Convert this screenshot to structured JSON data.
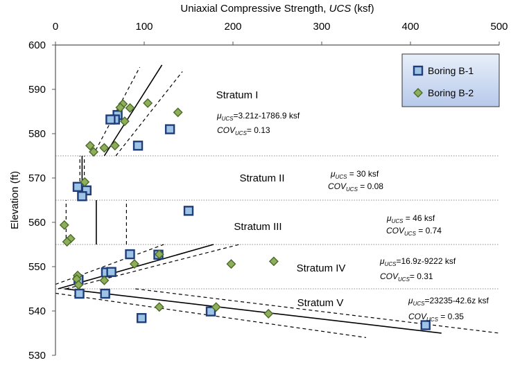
{
  "chart_data": {
    "type": "scatter",
    "title": "",
    "xlabel": "Uniaxial Compressive Strength, UCS (ksf)",
    "xlabel_parts": {
      "prefix": "Uniaxial Compressive Strength, ",
      "italic": "UCS",
      "suffix": " (ksf)"
    },
    "ylabel": "Elevation (ft)",
    "x_axis_position": "top",
    "xlim": [
      0,
      500
    ],
    "ylim": [
      530,
      600
    ],
    "xticks": [
      "0",
      "100",
      "200",
      "300",
      "400",
      "500"
    ],
    "yticks": [
      "530",
      "540",
      "550",
      "560",
      "570",
      "580",
      "590",
      "600"
    ],
    "grid": false,
    "legend_position": "top-right",
    "series": [
      {
        "name": "Boring B-1",
        "marker": "square",
        "color": "#1f3d78",
        "fill": "#9dc3e6",
        "points": [
          [
            70,
            584.2
          ],
          [
            67,
            583.2
          ],
          [
            62,
            583.2
          ],
          [
            129,
            581.0
          ],
          [
            93,
            577.3
          ],
          [
            25,
            568.0
          ],
          [
            35,
            567.2
          ],
          [
            30,
            565.9
          ],
          [
            150,
            562.6
          ],
          [
            84,
            552.8
          ],
          [
            116,
            552.7
          ],
          [
            57,
            548.7
          ],
          [
            63,
            548.8
          ],
          [
            26,
            547.0
          ],
          [
            27,
            543.9
          ],
          [
            56,
            543.9
          ],
          [
            97,
            538.4
          ],
          [
            175,
            539.9
          ],
          [
            417,
            536.8
          ]
        ]
      },
      {
        "name": "Boring B-2",
        "marker": "diamond",
        "color": "#4a6a2a",
        "fill": "#8fae5a",
        "points": [
          [
            76,
            586.7
          ],
          [
            73,
            585.9
          ],
          [
            104,
            586.9
          ],
          [
            84,
            585.8
          ],
          [
            138,
            584.8
          ],
          [
            78,
            582.8
          ],
          [
            39,
            577.3
          ],
          [
            55,
            576.8
          ],
          [
            67,
            577.3
          ],
          [
            43,
            575.9
          ],
          [
            33,
            569.1
          ],
          [
            10,
            559.4
          ],
          [
            17,
            556.3
          ],
          [
            13,
            555.6
          ],
          [
            117,
            552.8
          ],
          [
            89,
            550.6
          ],
          [
            198,
            550.6
          ],
          [
            246,
            551.2
          ],
          [
            25,
            548.0
          ],
          [
            24,
            547.2
          ],
          [
            55,
            546.9
          ],
          [
            26,
            545.9
          ],
          [
            117,
            540.9
          ],
          [
            181,
            540.9
          ],
          [
            240,
            539.4
          ]
        ]
      }
    ],
    "strata": [
      {
        "label": "Stratum I",
        "ymin": 575,
        "ymax": 600,
        "eq_mu_prefix": "μ",
        "eq_mu_sub": "UCS",
        "eq_mu_value": "=3.21z-1786.9 ksf",
        "eq_cov_prefix": "COV",
        "eq_cov_sub": "UCS",
        "eq_cov_value": "= 0.13"
      },
      {
        "label": "Stratum II",
        "ymin": 565,
        "ymax": 575,
        "eq_mu_prefix": "μ",
        "eq_mu_sub": "UCS",
        "eq_mu_value": " = 30 ksf",
        "eq_cov_prefix": "COV",
        "eq_cov_sub": "UCS",
        "eq_cov_value": " = 0.08"
      },
      {
        "label": "Stratum III",
        "ymin": 555,
        "ymax": 565,
        "eq_mu_prefix": "μ",
        "eq_mu_sub": "UCS",
        "eq_mu_value": " = 46 ksf",
        "eq_cov_prefix": "COV",
        "eq_cov_sub": "UCS",
        "eq_cov_value": " = 0.74"
      },
      {
        "label": "Stratum IV",
        "ymin": 545,
        "ymax": 555,
        "eq_mu_prefix": "μ",
        "eq_mu_sub": "UCS",
        "eq_mu_value": "=16.9z-9222 ksf",
        "eq_cov_prefix": "COV",
        "eq_cov_sub": "UCS",
        "eq_cov_value": "= 0.31"
      },
      {
        "label": "Stratum V",
        "ymin": 530,
        "ymax": 545,
        "eq_mu_prefix": "μ",
        "eq_mu_sub": "UCS",
        "eq_mu_value": "=23235-42.6z ksf",
        "eq_cov_prefix": "COV",
        "eq_cov_sub": "UCS",
        "eq_cov_value": " = 0.35"
      }
    ],
    "boundaries": [
      575,
      565,
      555,
      545
    ],
    "fit_lines": [
      {
        "stratum": "Stratum I",
        "style": "solid",
        "from": [
          55,
          575
        ],
        "to": [
          120,
          595.5
        ]
      },
      {
        "stratum": "Stratum I",
        "style": "dashed",
        "from": [
          42,
          575
        ],
        "to": [
          95,
          595
        ]
      },
      {
        "stratum": "Stratum I",
        "style": "dashed",
        "from": [
          68,
          575
        ],
        "to": [
          143,
          594
        ]
      },
      {
        "stratum": "Stratum II",
        "style": "solid",
        "from": [
          30,
          565
        ],
        "to": [
          30,
          575
        ]
      },
      {
        "stratum": "Stratum II",
        "style": "dashed",
        "from": [
          27.5,
          565
        ],
        "to": [
          27.5,
          575
        ]
      },
      {
        "stratum": "Stratum II",
        "style": "dashed",
        "from": [
          32.5,
          565
        ],
        "to": [
          32.5,
          575
        ]
      },
      {
        "stratum": "Stratum III",
        "style": "solid",
        "from": [
          46,
          555
        ],
        "to": [
          46,
          565
        ]
      },
      {
        "stratum": "Stratum III",
        "style": "dashed",
        "from": [
          12,
          555
        ],
        "to": [
          12,
          565
        ]
      },
      {
        "stratum": "Stratum III",
        "style": "dashed",
        "from": [
          80,
          555
        ],
        "to": [
          80,
          565
        ]
      },
      {
        "stratum": "Stratum IV",
        "style": "solid",
        "from": [
          3,
          545
        ],
        "to": [
          178,
          555
        ]
      },
      {
        "stratum": "Stratum IV",
        "style": "dashed",
        "from": [
          0,
          546
        ],
        "to": [
          122,
          555
        ]
      },
      {
        "stratum": "Stratum IV",
        "style": "dashed",
        "from": [
          12,
          545
        ],
        "to": [
          207,
          555
        ]
      },
      {
        "stratum": "Stratum V",
        "style": "solid",
        "from": [
          10,
          545
        ],
        "to": [
          435,
          535
        ]
      },
      {
        "stratum": "Stratum V",
        "style": "dashed",
        "from": [
          0,
          544
        ],
        "to": [
          350,
          534
        ]
      },
      {
        "stratum": "Stratum V",
        "style": "dashed",
        "from": [
          90,
          545
        ],
        "to": [
          500,
          535
        ]
      }
    ]
  }
}
